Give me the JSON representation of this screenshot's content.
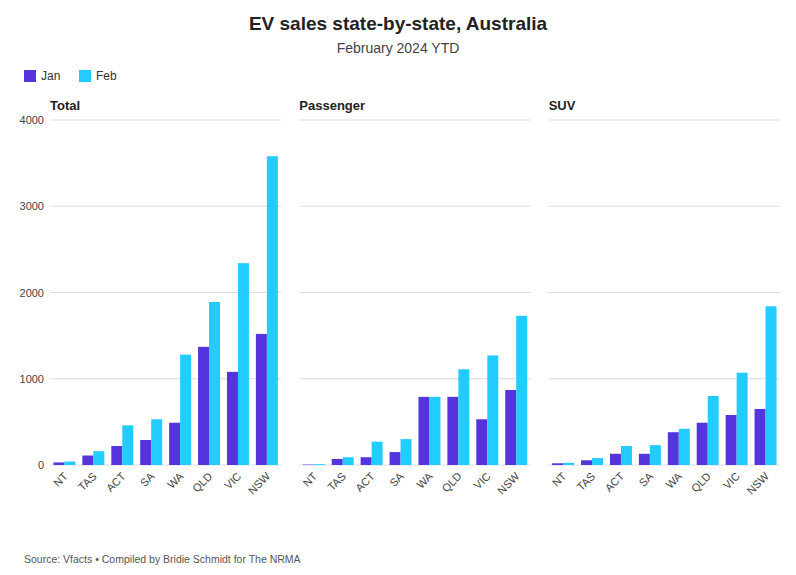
{
  "title": "EV sales state-by-state, Australia",
  "subtitle": "February 2024 YTD",
  "source": "Source: Vfacts • Compiled by Bridie Schmidt for The NRMA",
  "chart_data": [
    {
      "type": "bar",
      "title": "Total",
      "categories": [
        "NT",
        "TAS",
        "ACT",
        "SA",
        "WA",
        "QLD",
        "VIC",
        "NSW"
      ],
      "series": [
        {
          "name": "Jan",
          "color": "#5533dd",
          "values": [
            30,
            110,
            220,
            290,
            490,
            1370,
            1080,
            1520
          ]
        },
        {
          "name": "Feb",
          "color": "#22ccff",
          "values": [
            40,
            160,
            460,
            530,
            1280,
            1890,
            2340,
            3580
          ]
        }
      ],
      "ylim": [
        0,
        4000
      ],
      "yticks": [
        0,
        1000,
        2000,
        3000,
        4000
      ],
      "grid": true,
      "legend": "upper left"
    },
    {
      "type": "bar",
      "title": "Passenger",
      "categories": [
        "NT",
        "TAS",
        "ACT",
        "SA",
        "WA",
        "QLD",
        "VIC",
        "NSW"
      ],
      "series": [
        {
          "name": "Jan",
          "color": "#5533dd",
          "values": [
            5,
            70,
            90,
            150,
            790,
            790,
            530,
            870
          ]
        },
        {
          "name": "Feb",
          "color": "#22ccff",
          "values": [
            10,
            90,
            270,
            300,
            790,
            1110,
            1270,
            1730
          ]
        }
      ],
      "ylim": [
        0,
        4000
      ],
      "yticks": [
        0,
        1000,
        2000,
        3000,
        4000
      ],
      "grid": true,
      "tick_labels": "x"
    },
    {
      "type": "bar",
      "title": "SUV",
      "categories": [
        "NT",
        "TAS",
        "ACT",
        "SA",
        "WA",
        "QLD",
        "VIC",
        "NSW"
      ],
      "series": [
        {
          "name": "Jan",
          "color": "#5533dd",
          "values": [
            20,
            55,
            130,
            130,
            380,
            490,
            580,
            650
          ]
        },
        {
          "name": "Feb",
          "color": "#22ccff",
          "values": [
            25,
            80,
            220,
            230,
            420,
            800,
            1070,
            1840
          ]
        }
      ],
      "ylim": [
        0,
        4000
      ],
      "yticks": [
        0,
        1000,
        2000,
        3000,
        4000
      ],
      "grid": true,
      "tick_labels": "x"
    }
  ]
}
